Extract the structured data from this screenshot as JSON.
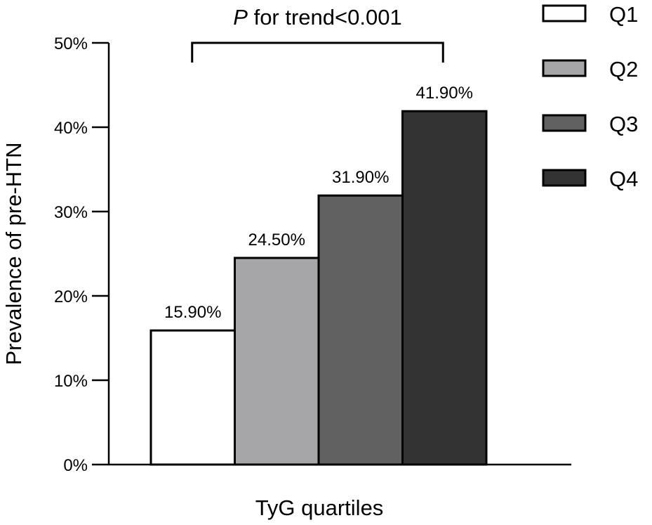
{
  "chart_data": {
    "type": "bar",
    "categories": [
      "Q1",
      "Q2",
      "Q3",
      "Q4"
    ],
    "values": [
      15.9,
      24.5,
      31.9,
      41.9
    ],
    "value_labels": [
      "15.90%",
      "24.50%",
      "31.90%",
      "41.90%"
    ],
    "colors": [
      "#ffffff",
      "#a6a6a8",
      "#616161",
      "#333333"
    ],
    "xlabel": "TyG quartiles",
    "ylabel": "Prevalence of pre-HTN",
    "ylim": [
      0,
      50
    ],
    "yticks": [
      0,
      10,
      20,
      30,
      40,
      50
    ],
    "ytick_labels": [
      "0%",
      "10%",
      "20%",
      "30%",
      "40%",
      "50%"
    ],
    "legend": {
      "placement": "top-right",
      "entries": [
        "Q1",
        "Q2",
        "Q3",
        "Q4"
      ]
    },
    "annotation": {
      "italic_part": "P",
      "text_part": " for trend<0.001",
      "spans": [
        "Q1",
        "Q4"
      ]
    },
    "grid": false
  }
}
